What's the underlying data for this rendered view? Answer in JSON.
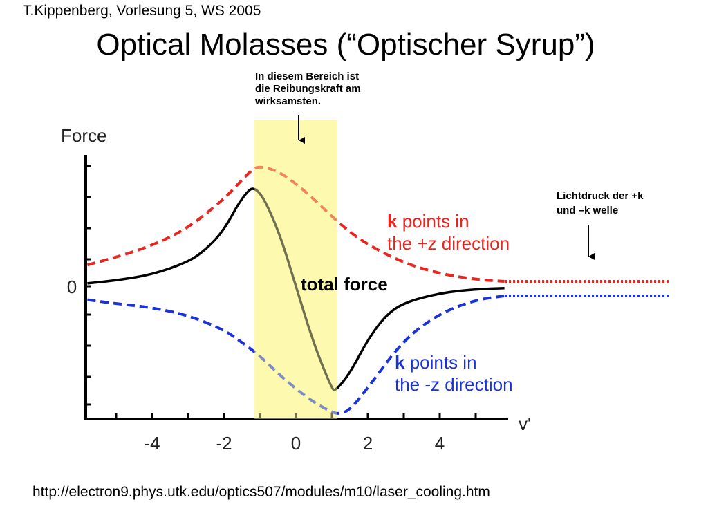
{
  "header": "T.Kippenberg, Vorlesung 5, WS 2005",
  "title": "Optical Molasses (“Optischer Syrup”)",
  "annotation_reibung": {
    "line1": "In diesem Bereich ist",
    "line2": "die Reibungskraft am",
    "line3": "wirksamsten."
  },
  "annotation_licht": {
    "line1": "Lichtdruck der +k",
    "line2": "und –k welle"
  },
  "url": "http://electron9.phys.utk.edu/optics507/modules/m10/laser_cooling.htm",
  "colors": {
    "plus_k": "#e8261f",
    "minus_k": "#1a32d6",
    "total": "#000000",
    "highlight": "#fdfab0"
  },
  "chart_data": {
    "type": "line",
    "ylabel": "Force",
    "xlabel": "v'",
    "x_ticks": [
      "-4",
      "-2",
      "0",
      "2",
      "4"
    ],
    "y_ticks": [
      "0"
    ],
    "xlim": [
      -5.8,
      5.8
    ],
    "ylim": [
      -1.6,
      1.6
    ],
    "highlight_region": [
      -1.15,
      1.15
    ],
    "series": [
      {
        "name": "k points in the +z direction",
        "label_bold": "k",
        "label_rest": " points in",
        "label_line2": "the +z direction",
        "style": "dashed",
        "color_key": "plus_k",
        "x": [
          -5.8,
          -5,
          -4,
          -3,
          -2,
          -1.5,
          -1.2,
          -1,
          -0.5,
          0,
          0.5,
          1,
          1.5,
          2,
          3,
          4,
          5,
          5.8
        ],
        "y": [
          0.22,
          0.3,
          0.42,
          0.6,
          0.9,
          1.1,
          1.21,
          1.24,
          1.19,
          1.06,
          0.9,
          0.72,
          0.56,
          0.43,
          0.24,
          0.13,
          0.07,
          0.05
        ]
      },
      {
        "name": "k points in the -z direction",
        "label_bold": "k",
        "label_rest": " points in",
        "label_line2": "the -z direction",
        "style": "dashed",
        "color_key": "minus_k",
        "x": [
          -5.8,
          -5,
          -4,
          -3,
          -2,
          -1.5,
          -1,
          -0.5,
          0,
          0.5,
          1,
          1.2,
          1.5,
          2,
          3,
          4,
          5,
          5.8
        ],
        "y": [
          -0.14,
          -0.18,
          -0.22,
          -0.3,
          -0.45,
          -0.58,
          -0.72,
          -0.9,
          -1.06,
          -1.2,
          -1.3,
          -1.32,
          -1.28,
          -1.05,
          -0.55,
          -0.28,
          -0.14,
          -0.1
        ]
      },
      {
        "name": "total force",
        "label_text": "total force",
        "style": "solid",
        "color_key": "total",
        "x": [
          -5.8,
          -5,
          -4,
          -3,
          -2.5,
          -2,
          -1.5,
          -1.1,
          -0.5,
          0,
          0.5,
          1,
          1.1,
          1.5,
          2,
          2.5,
          3,
          4,
          5,
          5.8
        ],
        "y": [
          0.03,
          0.06,
          0.12,
          0.25,
          0.38,
          0.58,
          0.92,
          1.06,
          0.6,
          0.0,
          -0.6,
          -1.06,
          -1.08,
          -0.9,
          -0.55,
          -0.3,
          -0.17,
          -0.07,
          -0.03,
          -0.02
        ]
      }
    ],
    "extensions": [
      {
        "series": "k points in the +z direction",
        "style": "dotted",
        "color_key": "plus_k",
        "value": 0.05
      },
      {
        "series": "k points in the -z direction",
        "style": "dotted",
        "color_key": "minus_k",
        "value": -0.1
      }
    ]
  }
}
